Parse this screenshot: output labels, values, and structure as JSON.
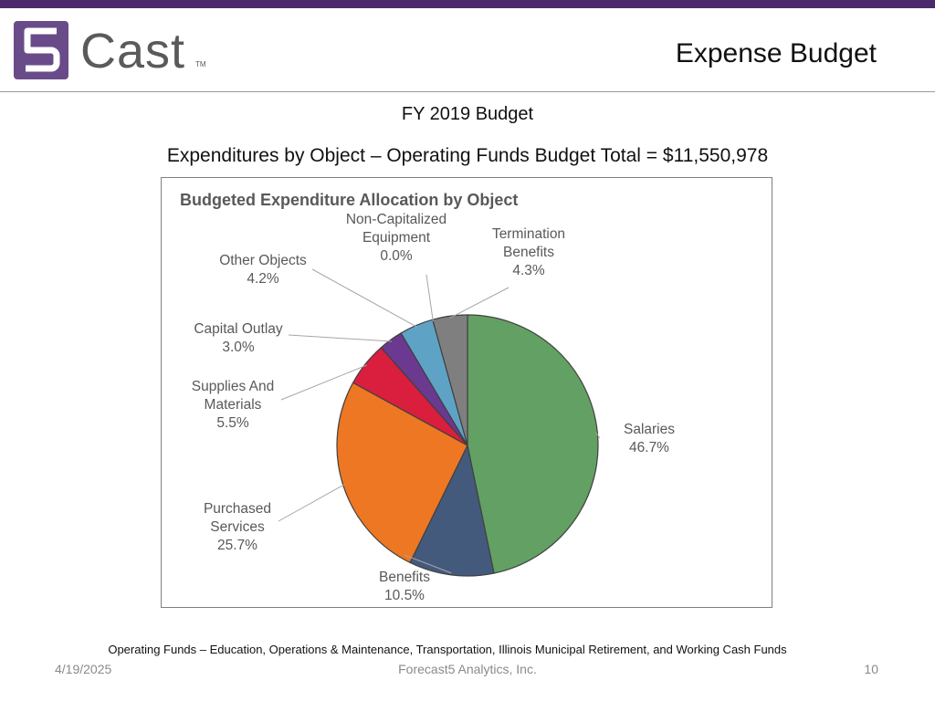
{
  "slide": {
    "logo_text": "Cast",
    "logo_mark": "5",
    "logo_tm": "TM",
    "title": "Expense Budget",
    "subtitle": "FY 2019 Budget",
    "subtitle2": "Expenditures by Object – Operating Funds Budget Total = $11,550,978",
    "footnote": "Operating Funds – Education, Operations & Maintenance, Transportation, Illinois Municipal Retirement, and Working Cash Funds",
    "footer_date": "4/19/2025",
    "footer_company": "Forecast5 Analytics, Inc.",
    "footer_page": "10",
    "brand_color": "#4b2a6b"
  },
  "chart_data": {
    "type": "pie",
    "title": "Budgeted Expenditure Allocation by Object",
    "start": "12 o'clock, clockwise",
    "slices": [
      {
        "label": [
          "Salaries"
        ],
        "pct_text": "46.7%",
        "value": 46.7,
        "color": "#63a063"
      },
      {
        "label": [
          "Benefits"
        ],
        "pct_text": "10.5%",
        "value": 10.5,
        "color": "#435a7d"
      },
      {
        "label": [
          "Purchased",
          "Services"
        ],
        "pct_text": "25.7%",
        "value": 25.7,
        "color": "#ee7723"
      },
      {
        "label": [
          "Supplies And",
          "Materials"
        ],
        "pct_text": "5.5%",
        "value": 5.5,
        "color": "#d91f3d"
      },
      {
        "label": [
          "Capital Outlay"
        ],
        "pct_text": "3.0%",
        "value": 3.0,
        "color": "#6b3990"
      },
      {
        "label": [
          "Other Objects"
        ],
        "pct_text": "4.2%",
        "value": 4.2,
        "color": "#5ea3c6"
      },
      {
        "label": [
          "Non-Capitalized",
          "Equipment"
        ],
        "pct_text": "0.0%",
        "value": 0.0,
        "color": "#9a9a9a"
      },
      {
        "label": [
          "Termination",
          "Benefits"
        ],
        "pct_text": "4.3%",
        "value": 4.3,
        "color": "#7f7f7f"
      }
    ]
  }
}
